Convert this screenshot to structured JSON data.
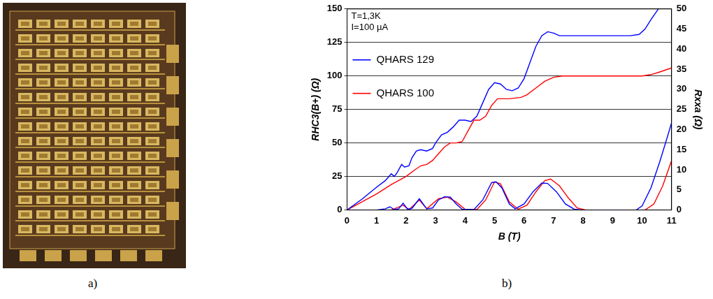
{
  "panels": [
    "a)",
    "b)"
  ],
  "chart_data": {
    "type": "line",
    "x_label": "B (T)",
    "y_label": "RHC3(B+) (Ω)",
    "y2_label": "Rxxa (Ω)",
    "annotations": [
      "T=1,3K",
      "I=100 µA"
    ],
    "xlim": [
      0,
      11
    ],
    "xticks": [
      0,
      1,
      2,
      3,
      4,
      5,
      6,
      7,
      8,
      9,
      10,
      11
    ],
    "ylim": [
      0,
      150
    ],
    "yticks": [
      0,
      25,
      50,
      75,
      100,
      125,
      150
    ],
    "y2lim": [
      0,
      50
    ],
    "y2ticks": [
      0,
      5,
      10,
      15,
      20,
      25,
      30,
      35,
      40,
      45,
      50
    ],
    "grid": true,
    "legend": "upper left",
    "series": [
      {
        "name": "QHARS 129",
        "color": "#0000ff",
        "x": [
          0,
          0.5,
          1.0,
          1.3,
          1.5,
          1.6,
          1.7,
          1.85,
          1.95,
          2.1,
          2.2,
          2.35,
          2.5,
          2.7,
          2.9,
          3.0,
          3.2,
          3.4,
          3.6,
          3.8,
          4.0,
          4.2,
          4.4,
          4.6,
          4.8,
          5.0,
          5.2,
          5.4,
          5.6,
          5.8,
          6.0,
          6.2,
          6.4,
          6.6,
          6.8,
          7.0,
          7.2,
          8,
          9,
          9.6,
          9.9,
          10.1,
          10.3,
          10.55
        ],
        "values": [
          0,
          8,
          17,
          22,
          27,
          25,
          28,
          34,
          32,
          33,
          39,
          44,
          45,
          44,
          46,
          50,
          56,
          58,
          62,
          67,
          67,
          66,
          70,
          80,
          90,
          95,
          94,
          90,
          89,
          91,
          98,
          110,
          122,
          130,
          133,
          132,
          130,
          130,
          130,
          130,
          131,
          135,
          142,
          150
        ]
      },
      {
        "name": "QHARS 100",
        "color": "#ff0000",
        "x": [
          0,
          0.5,
          1,
          1.5,
          2,
          2.3,
          2.5,
          2.7,
          2.9,
          3.1,
          3.3,
          3.5,
          3.7,
          3.9,
          4.1,
          4.3,
          4.5,
          4.7,
          4.9,
          5.1,
          5.5,
          5.9,
          6.1,
          6.4,
          6.7,
          7.0,
          7.3,
          7.6,
          9,
          10,
          10.3,
          10.6,
          11
        ],
        "values": [
          0,
          6,
          12,
          19,
          25,
          30,
          33,
          34,
          37,
          42,
          47,
          50,
          50,
          51,
          59,
          67,
          67,
          70,
          78,
          83,
          83,
          84,
          86,
          91,
          96,
          99,
          100,
          100,
          100,
          100,
          101,
          103,
          106
        ]
      },
      {
        "name": "QHARS 129",
        "color": "#0000ff",
        "axis": "y2",
        "x": [
          0,
          1.0,
          1.3,
          1.45,
          1.6,
          1.75,
          1.9,
          2.05,
          2.2,
          2.45,
          2.7,
          2.9,
          3.1,
          3.3,
          3.5,
          3.7,
          3.9,
          4.3,
          4.6,
          4.9,
          5.05,
          5.25,
          5.5,
          5.7,
          6.0,
          6.3,
          6.6,
          6.8,
          7.1,
          7.4,
          7.7,
          8,
          9.8,
          10,
          10.3,
          10.6,
          10.85,
          11
        ],
        "values": [
          0,
          0,
          0.3,
          0.8,
          0.1,
          0.3,
          1.7,
          0.2,
          0.4,
          2.8,
          0.3,
          0.5,
          2.5,
          3.3,
          3.2,
          1.5,
          0.2,
          0.1,
          2.5,
          6.8,
          7.0,
          5.5,
          1.5,
          0.3,
          1.5,
          4.5,
          6.7,
          6.6,
          4.5,
          1.5,
          0.2,
          0,
          0,
          1,
          5.5,
          12,
          18,
          21.7
        ]
      },
      {
        "name": "QHARS 100",
        "color": "#ff0000",
        "axis": "y2",
        "x": [
          0,
          1.5,
          1.9,
          2.1,
          2.45,
          2.7,
          3.1,
          3.4,
          3.7,
          4.0,
          4.4,
          4.7,
          5.0,
          5.2,
          5.5,
          5.8,
          6.1,
          6.4,
          6.7,
          6.9,
          7.2,
          7.5,
          7.8,
          8.1,
          10.1,
          10.4,
          10.7,
          11
        ],
        "values": [
          0,
          0,
          1.2,
          0.1,
          2.5,
          0.3,
          2.8,
          3.2,
          2.0,
          0.2,
          0.1,
          2.5,
          7.0,
          6.5,
          2.0,
          0.2,
          1.2,
          4.5,
          7.3,
          7.7,
          6.0,
          3.0,
          0.5,
          0,
          0,
          1.5,
          6,
          12.3
        ]
      }
    ]
  }
}
